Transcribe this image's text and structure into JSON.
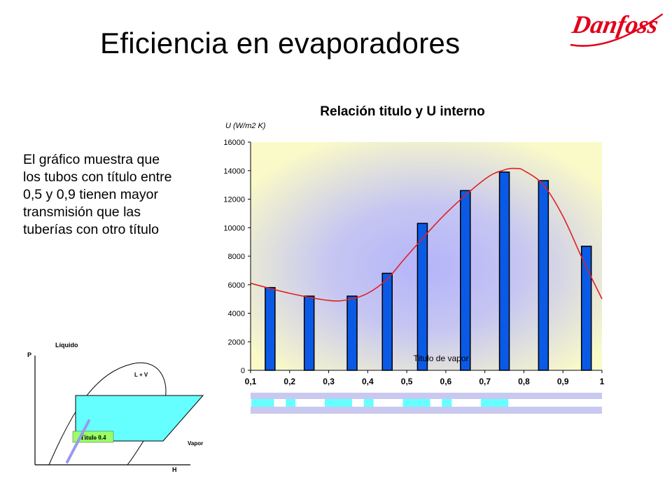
{
  "slide": {
    "title": "Eficiencia en evaporadores",
    "logo_text": "Danfoss",
    "brand_color": "#e2001a",
    "body_lines": [
      "El gráfico muestra que",
      "los tubos con título entre",
      "0,5 y 0,9 tienen mayor",
      "transmisión que las",
      "tuberías con otro título"
    ]
  },
  "chart_data": [
    {
      "type": "bar",
      "title": "Relación titulo y U interno",
      "ylabel": "U (W/m2 K)",
      "xlabel": "Titulo de vapor",
      "x_ticks": [
        "0,1",
        "0,2",
        "0,3",
        "0,4",
        "0,5",
        "0,6",
        "0,7",
        "0,8",
        "0,9",
        "1"
      ],
      "xlim": [
        0.1,
        1.0
      ],
      "y_ticks": [
        "0",
        "2000",
        "4000",
        "6000",
        "8000",
        "10000",
        "12000",
        "14000",
        "16000"
      ],
      "ylim": [
        0,
        16000
      ],
      "grid": false,
      "bars": {
        "x": [
          0.15,
          0.25,
          0.36,
          0.45,
          0.54,
          0.65,
          0.75,
          0.85,
          0.96
        ],
        "values": [
          5800,
          5200,
          5200,
          6800,
          10300,
          12600,
          13900,
          13300,
          8700
        ],
        "color": "#0a5ae6"
      },
      "trend_curve": {
        "x": [
          0.1,
          0.2,
          0.3,
          0.35,
          0.4,
          0.45,
          0.5,
          0.6,
          0.7,
          0.75,
          0.78,
          0.8,
          0.85,
          0.9,
          0.95,
          1.0
        ],
        "values": [
          6100,
          5400,
          4900,
          4950,
          5400,
          6400,
          8000,
          11000,
          13400,
          14050,
          14150,
          14000,
          13000,
          10800,
          7800,
          5000
        ],
        "color": "#e02020"
      },
      "plot_colors": {
        "outer": "#fafac8",
        "inner": "#b4b4fa",
        "strip_light": "#c8c8f0",
        "strip_cyan": "#66ffff"
      }
    },
    {
      "type": "diagram",
      "axis_labels": {
        "p": "P",
        "h": "H"
      },
      "region_labels": {
        "liquid": "Líquido",
        "mix": "L + V",
        "vapor": "Vapor"
      },
      "tag": "Título 0.4",
      "colors": {
        "region": "#66ffff",
        "tag": "#99ff66",
        "line": "#9999ee"
      }
    }
  ]
}
